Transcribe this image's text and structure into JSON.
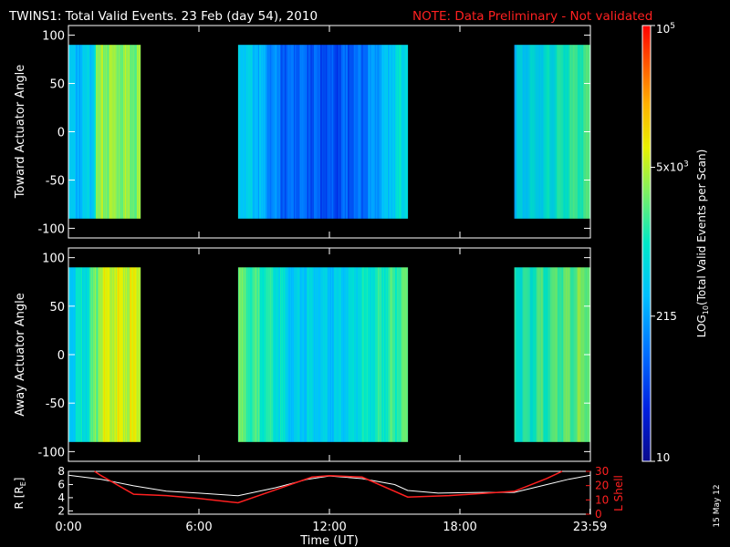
{
  "header": {
    "title": "TWINS1: Total Valid Events. 23 Feb (day  54), 2010",
    "note": "NOTE: Data Preliminary - Not validated"
  },
  "footer": {
    "date_stamp": "15 May 12"
  },
  "colors": {
    "background": "#000000",
    "axes": "#ffffff",
    "note": "#ff2020",
    "l_shell": "#ff2020",
    "r_line": "#ffffff"
  },
  "chart_data": [
    {
      "type": "heatmap",
      "ylabel": "Toward Actuator Angle",
      "ylim": [
        -110,
        110
      ],
      "yticks": [
        100,
        50,
        0,
        -50,
        -100
      ],
      "xlim": [
        0,
        24
      ],
      "data_angle_range": [
        -90,
        90
      ],
      "time_blocks": [
        {
          "start": 0.0,
          "end": 3.3,
          "profile": [
            [
              0.0,
              0.42
            ],
            [
              0.6,
              0.4
            ],
            [
              1.1,
              0.46
            ],
            [
              1.3,
              0.62
            ],
            [
              1.6,
              0.66
            ],
            [
              2.0,
              0.67
            ],
            [
              3.3,
              0.66
            ]
          ]
        },
        {
          "start": 7.8,
          "end": 15.6,
          "profile": [
            [
              7.8,
              0.47
            ],
            [
              8.6,
              0.42
            ],
            [
              9.3,
              0.33
            ],
            [
              10.0,
              0.25
            ],
            [
              10.6,
              0.28
            ],
            [
              11.5,
              0.24
            ],
            [
              12.3,
              0.22
            ],
            [
              13.2,
              0.26
            ],
            [
              14.0,
              0.34
            ],
            [
              14.8,
              0.44
            ],
            [
              15.6,
              0.52
            ]
          ]
        },
        {
          "start": 20.5,
          "end": 24.0,
          "profile": [
            [
              20.5,
              0.43
            ],
            [
              21.3,
              0.46
            ],
            [
              22.2,
              0.5
            ],
            [
              23.0,
              0.55
            ],
            [
              24.0,
              0.58
            ]
          ]
        }
      ]
    },
    {
      "type": "heatmap",
      "ylabel": "Away Actuator Angle",
      "ylim": [
        -110,
        110
      ],
      "yticks": [
        100,
        50,
        0,
        -50,
        -100
      ],
      "xlim": [
        0,
        24
      ],
      "data_angle_range": [
        -90,
        90
      ],
      "time_blocks": [
        {
          "start": 0.0,
          "end": 3.3,
          "profile": [
            [
              0.0,
              0.46
            ],
            [
              0.8,
              0.5
            ],
            [
              1.2,
              0.6
            ],
            [
              1.5,
              0.72
            ],
            [
              2.0,
              0.74
            ],
            [
              3.3,
              0.72
            ]
          ]
        },
        {
          "start": 7.8,
          "end": 15.6,
          "profile": [
            [
              7.8,
              0.62
            ],
            [
              8.6,
              0.58
            ],
            [
              9.5,
              0.52
            ],
            [
              10.3,
              0.44
            ],
            [
              11.0,
              0.46
            ],
            [
              12.0,
              0.42
            ],
            [
              13.0,
              0.47
            ],
            [
              14.0,
              0.53
            ],
            [
              15.0,
              0.58
            ],
            [
              15.6,
              0.6
            ]
          ]
        },
        {
          "start": 20.5,
          "end": 24.0,
          "profile": [
            [
              20.5,
              0.52
            ],
            [
              21.5,
              0.56
            ],
            [
              22.5,
              0.6
            ],
            [
              24.0,
              0.64
            ]
          ]
        }
      ]
    },
    {
      "type": "line",
      "xlabel": "Time (UT)",
      "xlim": [
        0,
        24
      ],
      "xticks": [
        0,
        6,
        12,
        18,
        23.983
      ],
      "xtick_labels": [
        "0:00",
        "6:00",
        "12:00",
        "18:00",
        "23:59"
      ],
      "left_axis": {
        "label": "R [R",
        "label_sub": "E",
        "label_end": "]",
        "ylim": [
          1.5,
          8
        ],
        "yticks": [
          2,
          4,
          6,
          8
        ]
      },
      "right_axis": {
        "label": "L Shell",
        "ylim": [
          0,
          30
        ],
        "yticks": [
          0,
          10,
          20,
          30
        ]
      },
      "series": [
        {
          "axis": "left",
          "points": [
            [
              0,
              7.4
            ],
            [
              1.5,
              6.8
            ],
            [
              3.0,
              5.8
            ],
            [
              4.5,
              5.0
            ],
            [
              6.0,
              4.7
            ],
            [
              7.8,
              4.3
            ],
            [
              9.5,
              5.5
            ],
            [
              11.0,
              6.8
            ],
            [
              12.0,
              7.3
            ],
            [
              13.5,
              6.9
            ],
            [
              15.0,
              6.0
            ],
            [
              15.6,
              5.1
            ],
            [
              17.0,
              4.7
            ],
            [
              19.0,
              4.8
            ],
            [
              20.5,
              4.8
            ],
            [
              22.0,
              6.0
            ],
            [
              23.0,
              6.8
            ],
            [
              24.0,
              7.4
            ]
          ]
        },
        {
          "axis": "right",
          "points": [
            [
              1.2,
              30
            ],
            [
              1.5,
              27
            ],
            [
              3.0,
              14
            ],
            [
              4.5,
              13
            ],
            [
              6.0,
              11
            ],
            [
              7.8,
              8
            ],
            [
              9.5,
              17
            ],
            [
              11.2,
              26
            ],
            [
              12.0,
              27
            ],
            [
              13.5,
              26
            ],
            [
              15.6,
              12
            ],
            [
              17.5,
              13
            ],
            [
              19.5,
              15
            ],
            [
              20.5,
              16
            ],
            [
              22.0,
              25
            ],
            [
              22.7,
              30
            ]
          ]
        }
      ]
    },
    {
      "type": "colorbar",
      "label": "LOG",
      "label_sub": "10",
      "label_end": "(Total Valid Events per Scan)",
      "scale": "log",
      "range": [
        10,
        100000
      ],
      "tick_labels": [
        {
          "value": 100000,
          "base": "10",
          "sup": "5"
        },
        {
          "value": 5000,
          "base": "5x10",
          "sup": "3"
        },
        {
          "value": 215,
          "base": "215",
          "sup": ""
        },
        {
          "value": 10,
          "base": "10",
          "sup": ""
        }
      ]
    }
  ]
}
